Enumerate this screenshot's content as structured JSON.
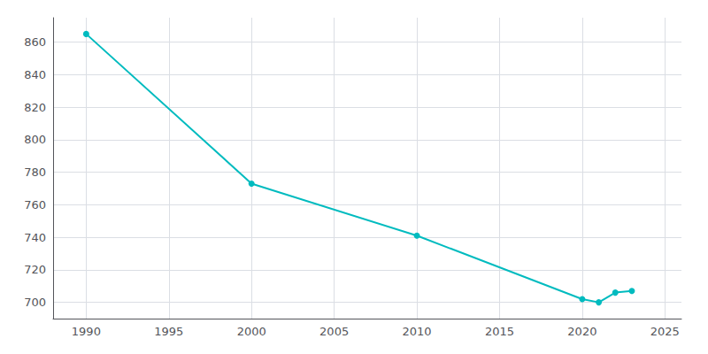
{
  "chart_data": {
    "type": "line",
    "x": [
      1990,
      2000,
      2010,
      2020,
      2021,
      2022,
      2023
    ],
    "values": [
      865,
      773,
      741,
      702,
      700,
      706,
      707
    ],
    "color": "#00BBBF",
    "marker": "o",
    "xlim": [
      1988,
      2026
    ],
    "ylim": [
      690,
      875
    ],
    "xticks": [
      1990,
      1995,
      2000,
      2005,
      2010,
      2015,
      2020,
      2025
    ],
    "yticks": [
      700,
      720,
      740,
      760,
      780,
      800,
      820,
      840,
      860
    ],
    "grid": true
  }
}
